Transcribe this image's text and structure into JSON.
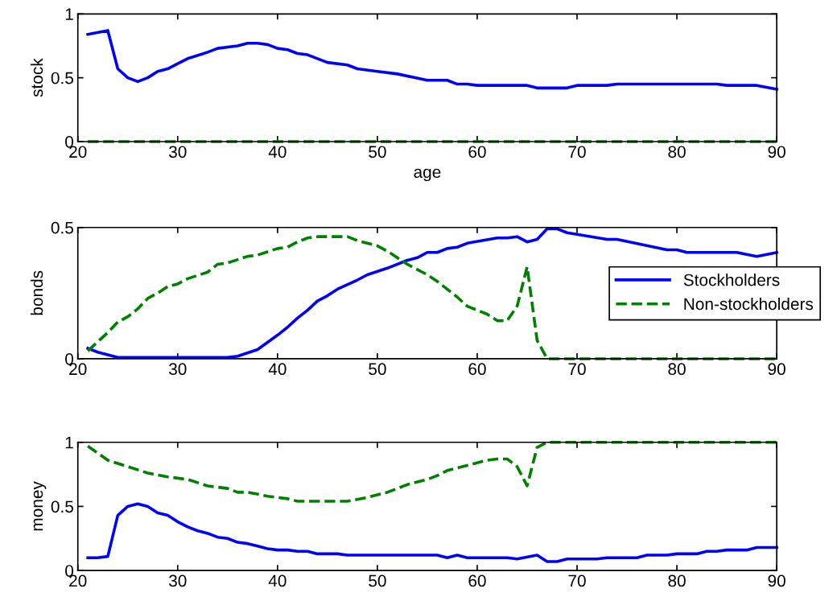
{
  "chart_data": [
    {
      "type": "line",
      "ylabel": "stock",
      "xlabel": "age",
      "xlim": [
        20,
        90
      ],
      "xticks": [
        20,
        30,
        40,
        50,
        60,
        70,
        80,
        90
      ],
      "ylim": [
        0,
        1
      ],
      "yticks": [
        0,
        0.5,
        1
      ],
      "grid": false,
      "legend": false,
      "series": [
        {
          "color": "#0000ff",
          "line_style": "solid",
          "x": [
            21,
            23,
            24,
            25,
            26,
            27,
            28,
            29,
            30,
            31,
            33,
            34,
            36,
            37,
            38,
            39,
            40,
            41,
            42,
            43,
            44,
            45,
            47,
            48,
            50,
            52,
            55,
            56,
            57,
            58,
            59,
            60,
            65,
            66,
            69,
            70,
            73,
            74,
            84,
            85,
            88,
            90
          ],
          "values": [
            0.84,
            0.87,
            0.57,
            0.5,
            0.47,
            0.5,
            0.55,
            0.57,
            0.61,
            0.65,
            0.7,
            0.73,
            0.75,
            0.77,
            0.77,
            0.76,
            0.73,
            0.72,
            0.69,
            0.68,
            0.65,
            0.62,
            0.6,
            0.57,
            0.55,
            0.53,
            0.48,
            0.48,
            0.48,
            0.45,
            0.45,
            0.44,
            0.44,
            0.42,
            0.42,
            0.44,
            0.44,
            0.45,
            0.45,
            0.44,
            0.44,
            0.41
          ]
        },
        {
          "color": "#008000",
          "line_style": "dashed",
          "x": [
            21,
            90
          ],
          "values": [
            0,
            0
          ]
        }
      ]
    },
    {
      "type": "line",
      "ylabel": "bonds",
      "xlim": [
        20,
        90
      ],
      "xticks": [
        20,
        30,
        40,
        50,
        60,
        70,
        80,
        90
      ],
      "ylim": [
        0,
        0.5
      ],
      "yticks": [
        0,
        0.5
      ],
      "grid": false,
      "legend": "right",
      "series": [
        {
          "name": "Stockholders",
          "color": "#0000ff",
          "line_style": "solid",
          "x": [
            21,
            22,
            24,
            35,
            36,
            38,
            40,
            41,
            42,
            43,
            44,
            45,
            46,
            48,
            49,
            51,
            53,
            54,
            55,
            56,
            57,
            58,
            59,
            62,
            63,
            64,
            65,
            66,
            67,
            68,
            69,
            73,
            74,
            79,
            80,
            81,
            86,
            88,
            90
          ],
          "values": [
            0.04,
            0.025,
            0.005,
            0.005,
            0.01,
            0.035,
            0.09,
            0.12,
            0.155,
            0.185,
            0.22,
            0.24,
            0.265,
            0.3,
            0.32,
            0.345,
            0.375,
            0.385,
            0.405,
            0.405,
            0.42,
            0.425,
            0.44,
            0.46,
            0.46,
            0.465,
            0.445,
            0.455,
            0.495,
            0.495,
            0.48,
            0.455,
            0.455,
            0.415,
            0.415,
            0.405,
            0.405,
            0.39,
            0.405
          ]
        },
        {
          "name": "Non-stockholders",
          "color": "#008000",
          "line_style": "dashed",
          "x": [
            21,
            23,
            24,
            25,
            26,
            27,
            28,
            29,
            30,
            31,
            33,
            34,
            35,
            37,
            38,
            40,
            41,
            42,
            43,
            44,
            47,
            48,
            50,
            51,
            53,
            55,
            56,
            58,
            59,
            61,
            62,
            63,
            64,
            65,
            66,
            67,
            90
          ],
          "values": [
            0.03,
            0.1,
            0.14,
            0.16,
            0.19,
            0.23,
            0.25,
            0.275,
            0.285,
            0.305,
            0.33,
            0.36,
            0.365,
            0.39,
            0.395,
            0.42,
            0.425,
            0.445,
            0.46,
            0.465,
            0.465,
            0.45,
            0.43,
            0.41,
            0.36,
            0.32,
            0.295,
            0.235,
            0.2,
            0.17,
            0.145,
            0.145,
            0.2,
            0.35,
            0.07,
            0,
            0
          ]
        }
      ]
    },
    {
      "type": "line",
      "ylabel": "money",
      "xlim": [
        20,
        90
      ],
      "xticks": [
        20,
        30,
        40,
        50,
        60,
        70,
        80,
        90
      ],
      "ylim": [
        0,
        1
      ],
      "yticks": [
        0,
        0.5,
        1
      ],
      "grid": false,
      "legend": false,
      "series": [
        {
          "color": "#0000ff",
          "line_style": "solid",
          "x": [
            21,
            22,
            23,
            24,
            25,
            26,
            27,
            28,
            29,
            30,
            31,
            32,
            33,
            34,
            35,
            36,
            37,
            38,
            39,
            40,
            41,
            42,
            43,
            44,
            46,
            47,
            56,
            57,
            58,
            59,
            63,
            64,
            66,
            67,
            68,
            69,
            72,
            73,
            76,
            77,
            79,
            80,
            82,
            83,
            84,
            85,
            87,
            88,
            90
          ],
          "values": [
            0.1,
            0.1,
            0.11,
            0.43,
            0.5,
            0.52,
            0.5,
            0.45,
            0.43,
            0.38,
            0.34,
            0.31,
            0.29,
            0.26,
            0.25,
            0.22,
            0.21,
            0.19,
            0.17,
            0.16,
            0.16,
            0.15,
            0.15,
            0.13,
            0.13,
            0.12,
            0.12,
            0.1,
            0.12,
            0.1,
            0.1,
            0.09,
            0.12,
            0.07,
            0.07,
            0.09,
            0.09,
            0.1,
            0.1,
            0.12,
            0.12,
            0.13,
            0.13,
            0.15,
            0.15,
            0.16,
            0.16,
            0.18,
            0.18
          ]
        },
        {
          "color": "#008000",
          "line_style": "dashed",
          "x": [
            21,
            23,
            25,
            27,
            29,
            31,
            33,
            35,
            36,
            37,
            39,
            41,
            42,
            47,
            49,
            50,
            51,
            53,
            55,
            56,
            57,
            59,
            60,
            61,
            62,
            63,
            64,
            65,
            66,
            67,
            90
          ],
          "values": [
            0.97,
            0.86,
            0.81,
            0.76,
            0.73,
            0.71,
            0.66,
            0.64,
            0.61,
            0.61,
            0.58,
            0.56,
            0.54,
            0.54,
            0.57,
            0.59,
            0.61,
            0.67,
            0.71,
            0.74,
            0.78,
            0.82,
            0.84,
            0.86,
            0.87,
            0.87,
            0.81,
            0.66,
            0.96,
            1,
            1
          ]
        }
      ]
    }
  ]
}
